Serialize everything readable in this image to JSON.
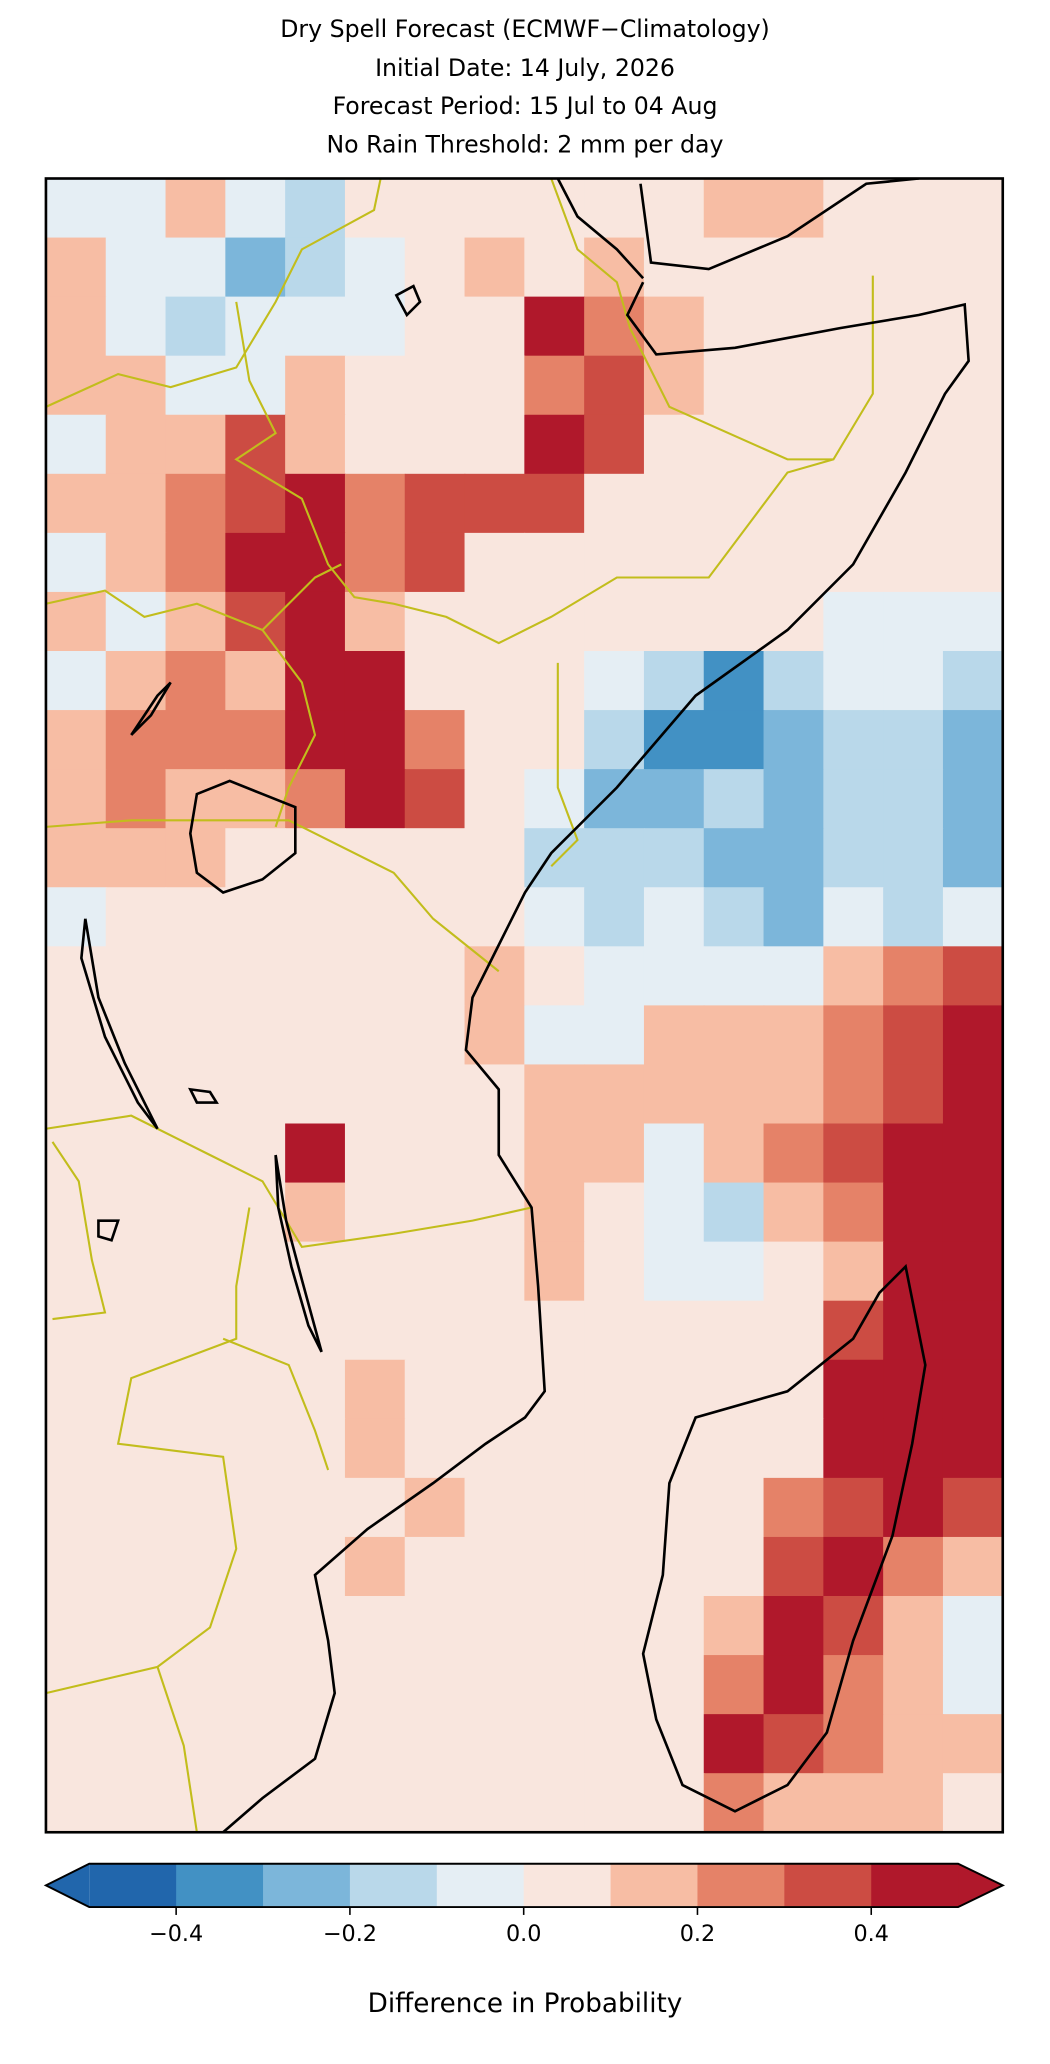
{
  "chart_data": {
    "type": "map",
    "title": [
      "Dry Spell Forecast (ECMWF−Climatology)",
      "Initial Date: 14 July, 2026",
      "Forecast Period: 15 Jul to 04 Aug",
      "No Rain Threshold: 2 mm per day"
    ],
    "values": [
      [
        -0.05,
        -0.05,
        0.15,
        -0.05,
        -0.15,
        0.05,
        0.05,
        0.05,
        0.05,
        0.05,
        0.05,
        0.15,
        0.15,
        0.05,
        0.05,
        0.05
      ],
      [
        0.15,
        -0.05,
        -0.05,
        -0.25,
        -0.15,
        -0.05,
        0.05,
        0.15,
        0.05,
        0.15,
        0.05,
        0.05,
        0.05,
        0.05,
        0.05,
        0.05
      ],
      [
        0.15,
        -0.05,
        -0.15,
        -0.05,
        -0.05,
        -0.05,
        0.05,
        0.05,
        0.45,
        0.25,
        0.15,
        0.05,
        0.05,
        0.05,
        0.05,
        0.05
      ],
      [
        0.15,
        0.15,
        -0.05,
        -0.05,
        0.15,
        0.05,
        0.05,
        0.05,
        0.25,
        0.35,
        0.15,
        0.05,
        0.05,
        0.05,
        0.05,
        0.05
      ],
      [
        -0.05,
        0.15,
        0.15,
        0.35,
        0.15,
        0.05,
        0.05,
        0.05,
        0.45,
        0.35,
        0.05,
        0.05,
        0.05,
        0.05,
        0.05,
        0.05
      ],
      [
        0.15,
        0.15,
        0.25,
        0.35,
        0.45,
        0.25,
        0.35,
        0.35,
        0.35,
        0.05,
        0.05,
        0.05,
        0.05,
        0.05,
        0.05,
        0.05
      ],
      [
        -0.05,
        0.15,
        0.25,
        0.45,
        0.45,
        0.25,
        0.35,
        0.05,
        0.05,
        0.05,
        0.05,
        0.05,
        0.05,
        0.05,
        0.05,
        0.05
      ],
      [
        0.15,
        -0.05,
        0.15,
        0.35,
        0.45,
        0.15,
        0.05,
        0.05,
        0.05,
        0.05,
        0.05,
        0.05,
        0.05,
        -0.05,
        -0.05,
        -0.05
      ],
      [
        -0.05,
        0.15,
        0.25,
        0.15,
        0.45,
        0.45,
        0.05,
        0.05,
        0.05,
        -0.05,
        -0.15,
        -0.35,
        -0.15,
        -0.05,
        -0.05,
        -0.15
      ],
      [
        0.15,
        0.25,
        0.25,
        0.25,
        0.45,
        0.45,
        0.25,
        0.05,
        0.05,
        -0.15,
        -0.35,
        -0.35,
        -0.25,
        -0.15,
        -0.15,
        -0.25
      ],
      [
        0.15,
        0.25,
        0.15,
        0.15,
        0.25,
        0.45,
        0.35,
        0.05,
        -0.05,
        -0.25,
        -0.25,
        -0.15,
        -0.25,
        -0.15,
        -0.15,
        -0.25
      ],
      [
        0.15,
        0.15,
        0.15,
        0.05,
        0.05,
        0.05,
        0.05,
        0.05,
        -0.15,
        -0.15,
        -0.15,
        -0.25,
        -0.25,
        -0.15,
        -0.15,
        -0.25
      ],
      [
        -0.05,
        0.05,
        0.05,
        0.05,
        0.05,
        0.05,
        0.05,
        0.05,
        -0.05,
        -0.15,
        -0.05,
        -0.15,
        -0.25,
        -0.05,
        -0.15,
        -0.05
      ],
      [
        0.05,
        0.05,
        0.05,
        0.05,
        0.05,
        0.05,
        0.05,
        0.15,
        0.05,
        -0.05,
        -0.05,
        -0.05,
        -0.05,
        0.15,
        0.25,
        0.35
      ],
      [
        0.05,
        0.05,
        0.05,
        0.05,
        0.05,
        0.05,
        0.05,
        0.15,
        -0.05,
        -0.05,
        0.15,
        0.15,
        0.15,
        0.25,
        0.35,
        0.45
      ],
      [
        0.05,
        0.05,
        0.05,
        0.05,
        0.05,
        0.05,
        0.05,
        0.05,
        0.15,
        0.15,
        0.15,
        0.15,
        0.15,
        0.25,
        0.35,
        0.45
      ],
      [
        0.05,
        0.05,
        0.05,
        0.05,
        0.45,
        0.05,
        0.05,
        0.05,
        0.15,
        0.15,
        -0.05,
        0.15,
        0.25,
        0.35,
        0.45,
        0.45
      ],
      [
        0.05,
        0.05,
        0.05,
        0.05,
        0.15,
        0.05,
        0.05,
        0.05,
        0.15,
        0.05,
        -0.05,
        -0.15,
        0.15,
        0.25,
        0.45,
        0.45
      ],
      [
        0.05,
        0.05,
        0.05,
        0.05,
        0.05,
        0.05,
        0.05,
        0.05,
        0.15,
        0.05,
        -0.05,
        -0.05,
        0.05,
        0.15,
        0.45,
        0.45
      ],
      [
        0.05,
        0.05,
        0.05,
        0.05,
        0.05,
        0.05,
        0.05,
        0.05,
        0.05,
        0.05,
        0.05,
        0.05,
        0.05,
        0.35,
        0.45,
        0.45
      ],
      [
        0.05,
        0.05,
        0.05,
        0.05,
        0.05,
        0.15,
        0.05,
        0.05,
        0.05,
        0.05,
        0.05,
        0.05,
        0.05,
        0.45,
        0.45,
        0.45
      ],
      [
        0.05,
        0.05,
        0.05,
        0.05,
        0.05,
        0.15,
        0.05,
        0.05,
        0.05,
        0.05,
        0.05,
        0.05,
        0.05,
        0.45,
        0.45,
        0.45
      ],
      [
        0.05,
        0.05,
        0.05,
        0.05,
        0.05,
        0.05,
        0.15,
        0.05,
        0.05,
        0.05,
        0.05,
        0.05,
        0.25,
        0.35,
        0.45,
        0.35
      ],
      [
        0.05,
        0.05,
        0.05,
        0.05,
        0.05,
        0.15,
        0.05,
        0.05,
        0.05,
        0.05,
        0.05,
        0.05,
        0.35,
        0.45,
        0.25,
        0.15
      ],
      [
        0.05,
        0.05,
        0.05,
        0.05,
        0.05,
        0.05,
        0.05,
        0.05,
        0.05,
        0.05,
        0.05,
        0.15,
        0.45,
        0.35,
        0.15,
        -0.05
      ],
      [
        0.05,
        0.05,
        0.05,
        0.05,
        0.05,
        0.05,
        0.05,
        0.05,
        0.05,
        0.05,
        0.05,
        0.25,
        0.45,
        0.25,
        0.15,
        -0.05
      ],
      [
        0.05,
        0.05,
        0.05,
        0.05,
        0.05,
        0.05,
        0.05,
        0.05,
        0.05,
        0.05,
        0.05,
        0.45,
        0.35,
        0.25,
        0.15,
        0.15
      ],
      [
        0.05,
        0.05,
        0.05,
        0.05,
        0.05,
        0.05,
        0.05,
        0.05,
        0.05,
        0.05,
        0.05,
        0.25,
        0.15,
        0.15,
        0.15,
        0.05
      ]
    ],
    "colorbar": {
      "levels": [
        -0.5,
        -0.4,
        -0.3,
        -0.2,
        -0.1,
        0,
        0.1,
        0.2,
        0.3,
        0.4,
        0.5
      ],
      "colors": [
        "#2166ac",
        "#4291c4",
        "#7cb6da",
        "#b9d8ea",
        "#e5eef4",
        "#f9e6de",
        "#f7bda4",
        "#e58268",
        "#cc4c43",
        "#b0182b"
      ],
      "extend": "both",
      "ticks": [
        {
          "value": -0.4,
          "label": "−0.4"
        },
        {
          "value": -0.2,
          "label": "−0.2"
        },
        {
          "value": 0,
          "label": "0.0"
        },
        0.2,
        0.4
      ],
      "label": "Difference in Probability"
    }
  }
}
